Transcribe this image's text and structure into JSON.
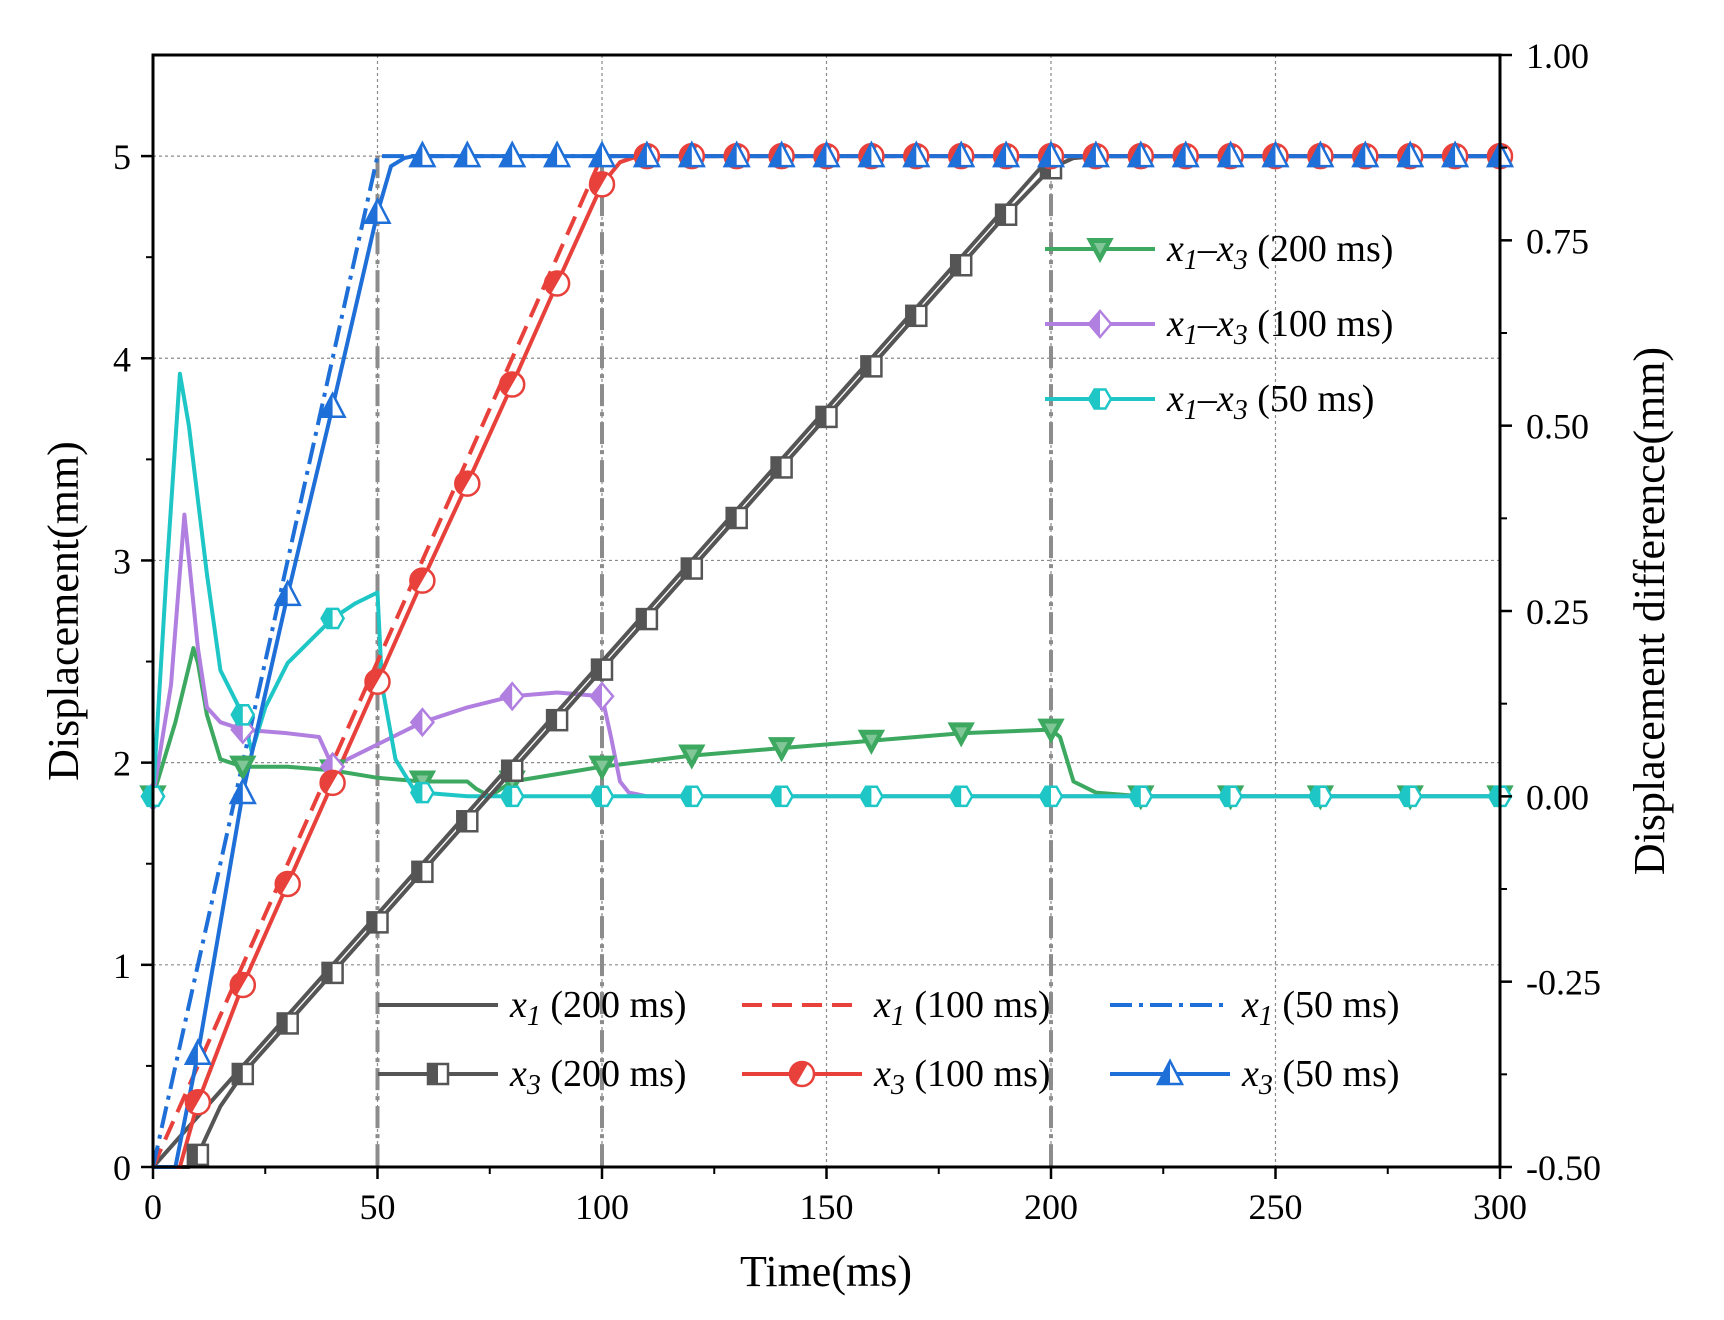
{
  "chart_data": {
    "type": "line",
    "xlabel": "Time(ms)",
    "ylabel": "Displacement(mm)",
    "y2label": "Displacement difference(mm)",
    "xlim": [
      0,
      300
    ],
    "ylim": [
      0,
      5.5
    ],
    "y2lim": [
      -0.5,
      1.0
    ],
    "xticks": [
      "0",
      "50",
      "100",
      "150",
      "200",
      "250",
      "300"
    ],
    "yticks": [
      "0",
      "1",
      "2",
      "3",
      "4",
      "5"
    ],
    "y2ticks": [
      "-0.50",
      "-0.25",
      "0.00",
      "0.25",
      "0.50",
      "0.75",
      "1.00"
    ],
    "grid": true,
    "vlines": [
      50,
      100,
      200
    ],
    "hline": 5,
    "colors": {
      "gray": "#555555",
      "red": "#e8403a",
      "blue": "#1f6fd8",
      "green": "#3ca860",
      "purple": "#b07fe0",
      "cyan": "#1ec6c6"
    },
    "series": [
      {
        "name": "x1 (200 ms)",
        "base": "x",
        "sub": "1",
        "suffix": " (200 ms)",
        "axis": "left",
        "color": "#555555",
        "dash": "solid",
        "marker": "none",
        "x": [
          0,
          200,
          300
        ],
        "y": [
          0,
          5,
          5
        ]
      },
      {
        "name": "x1 (100 ms)",
        "base": "x",
        "sub": "1",
        "suffix": " (100 ms)",
        "axis": "left",
        "color": "#e8403a",
        "dash": "dash",
        "marker": "none",
        "x": [
          0,
          100,
          300
        ],
        "y": [
          0,
          5,
          5
        ]
      },
      {
        "name": "x1 (50 ms)",
        "base": "x",
        "sub": "1",
        "suffix": " (50 ms)",
        "axis": "left",
        "color": "#1f6fd8",
        "dash": "dashdot",
        "marker": "none",
        "x": [
          0,
          50,
          300
        ],
        "y": [
          0,
          5,
          5
        ]
      },
      {
        "name": "x3 (200 ms)",
        "base": "x",
        "sub": "3",
        "suffix": " (200 ms)",
        "axis": "left",
        "color": "#555555",
        "dash": "solid",
        "marker": "square-half",
        "x": [
          0,
          8,
          10,
          15,
          20,
          30,
          40,
          50,
          60,
          70,
          80,
          90,
          100,
          110,
          120,
          130,
          140,
          150,
          160,
          170,
          180,
          190,
          200,
          205,
          210,
          220,
          230,
          240,
          250,
          260,
          270,
          280,
          290,
          300
        ],
        "y": [
          0,
          0,
          0.06,
          0.3,
          0.46,
          0.71,
          0.96,
          1.21,
          1.46,
          1.71,
          1.96,
          2.21,
          2.46,
          2.71,
          2.96,
          3.21,
          3.46,
          3.71,
          3.96,
          4.21,
          4.46,
          4.71,
          4.94,
          4.99,
          5,
          5,
          5,
          5,
          5,
          5,
          5,
          5,
          5,
          5
        ],
        "markers_x": [
          10,
          20,
          30,
          40,
          50,
          60,
          70,
          80,
          90,
          100,
          110,
          120,
          130,
          140,
          150,
          160,
          170,
          180,
          190,
          200
        ]
      },
      {
        "name": "x3 (100 ms)",
        "base": "x",
        "sub": "3",
        "suffix": " (100 ms)",
        "axis": "left",
        "color": "#e8403a",
        "dash": "solid",
        "marker": "circle-half",
        "x": [
          0,
          6,
          10,
          20,
          30,
          40,
          50,
          60,
          70,
          80,
          90,
          100,
          104,
          108,
          110,
          120,
          140,
          160,
          180,
          200,
          220,
          240,
          260,
          280,
          300
        ],
        "y": [
          0,
          0,
          0.32,
          0.9,
          1.4,
          1.9,
          2.4,
          2.9,
          3.38,
          3.87,
          4.37,
          4.86,
          4.97,
          5,
          5,
          5,
          5,
          5,
          5,
          5,
          5,
          5,
          5,
          5,
          5
        ],
        "markers_x": [
          10,
          20,
          30,
          40,
          50,
          60,
          70,
          80,
          90,
          100,
          110,
          120,
          130,
          140,
          150,
          160,
          170,
          180,
          190,
          200,
          210,
          220,
          230,
          240,
          250,
          260,
          270,
          280,
          290,
          300
        ]
      },
      {
        "name": "x3 (50 ms)",
        "base": "x",
        "sub": "3",
        "suffix": " (50 ms)",
        "axis": "left",
        "color": "#1f6fd8",
        "dash": "solid",
        "marker": "triangle-half",
        "x": [
          0,
          5,
          10,
          20,
          30,
          40,
          50,
          53,
          56,
          58,
          60,
          80,
          100,
          150,
          200,
          250,
          300
        ],
        "y": [
          0,
          0,
          0.56,
          1.85,
          2.83,
          3.76,
          4.72,
          4.95,
          4.99,
          5,
          5,
          5,
          5,
          5,
          5,
          5,
          5
        ],
        "markers_x": [
          10,
          20,
          30,
          40,
          50,
          60,
          70,
          80,
          90,
          100,
          110,
          120,
          130,
          140,
          150,
          160,
          170,
          180,
          190,
          200,
          210,
          220,
          230,
          240,
          250,
          260,
          270,
          280,
          290,
          300
        ]
      },
      {
        "name": "x1-x3 (200 ms)",
        "base": "x",
        "sub": "1",
        "base2": "x",
        "sub2": "3",
        "suffix": " (200 ms)",
        "axis": "right",
        "color": "#3ca860",
        "dash": "solid",
        "marker": "tri-down",
        "x": [
          0,
          5,
          9,
          10,
          12,
          15,
          20,
          30,
          40,
          50,
          60,
          70,
          72,
          75,
          80,
          90,
          100,
          120,
          140,
          160,
          180,
          200,
          202,
          205,
          210,
          220,
          240,
          260,
          280,
          300
        ],
        "y": [
          0,
          0.1,
          0.2,
          0.18,
          0.11,
          0.05,
          0.04,
          0.04,
          0.035,
          0.025,
          0.02,
          0.02,
          0.01,
          0.0,
          0.02,
          0.03,
          0.04,
          0.055,
          0.065,
          0.075,
          0.085,
          0.09,
          0.08,
          0.02,
          0.005,
          0.0,
          0.0,
          0.0,
          0.0,
          0.0
        ],
        "markers_x": [
          0,
          20,
          40,
          60,
          80,
          100,
          120,
          140,
          160,
          180,
          200,
          220,
          240,
          260,
          280,
          300
        ]
      },
      {
        "name": "x1-x3 (100 ms)",
        "base": "x",
        "sub": "1",
        "base2": "x",
        "sub2": "3",
        "suffix": " (100 ms)",
        "axis": "right",
        "color": "#b07fe0",
        "dash": "solid",
        "marker": "diamond-half",
        "x": [
          0,
          4,
          7,
          10,
          12,
          15,
          20,
          30,
          37,
          40,
          50,
          60,
          70,
          80,
          90,
          100,
          102,
          104,
          106,
          110,
          120,
          140,
          160,
          180,
          200,
          220,
          240,
          260,
          280,
          300
        ],
        "y": [
          0,
          0.15,
          0.38,
          0.2,
          0.12,
          0.1,
          0.09,
          0.085,
          0.08,
          0.04,
          0.07,
          0.1,
          0.12,
          0.135,
          0.14,
          0.135,
          0.08,
          0.02,
          0.005,
          0,
          0,
          0,
          0,
          0,
          0,
          0,
          0,
          0,
          0,
          0
        ],
        "markers_x": [
          0,
          20,
          40,
          60,
          80,
          100
        ]
      },
      {
        "name": "x1-x3 (50 ms)",
        "base": "x",
        "sub": "1",
        "base2": "x",
        "sub2": "3",
        "suffix": " (50 ms)",
        "axis": "right",
        "color": "#1ec6c6",
        "dash": "solid",
        "marker": "hexagon-half",
        "x": [
          0,
          3,
          6,
          8,
          12,
          15,
          20,
          22,
          25,
          30,
          40,
          45,
          50,
          51,
          54,
          58,
          60,
          70,
          80,
          100,
          150,
          200,
          250,
          300
        ],
        "y": [
          0,
          0.3,
          0.57,
          0.5,
          0.3,
          0.17,
          0.11,
          0.06,
          0.12,
          0.18,
          0.24,
          0.26,
          0.275,
          0.15,
          0.05,
          0.01,
          0.005,
          0.0,
          0.0,
          0,
          0,
          0,
          0,
          0
        ],
        "markers_x": [
          0,
          20,
          40,
          60,
          80,
          100,
          120,
          140,
          160,
          180,
          200,
          220,
          240,
          260,
          280,
          300
        ]
      }
    ]
  }
}
